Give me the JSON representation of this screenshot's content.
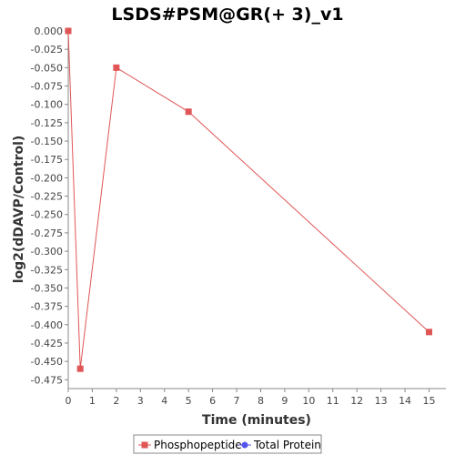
{
  "chart_data": {
    "type": "line",
    "title": "LSDS#PSM@GR(+ 3)_v1",
    "xlabel": "Time (minutes)",
    "ylabel": "log2(dDAVP/Control)",
    "xlim": [
      0,
      15.7
    ],
    "ylim": [
      -0.487,
      0.0
    ],
    "xticks": [
      0,
      1,
      2,
      3,
      4,
      5,
      6,
      7,
      8,
      9,
      10,
      11,
      12,
      13,
      14,
      15
    ],
    "yticks": [
      0.0,
      -0.025,
      -0.05,
      -0.075,
      -0.1,
      -0.125,
      -0.15,
      -0.175,
      -0.2,
      -0.225,
      -0.25,
      -0.275,
      -0.3,
      -0.325,
      -0.35,
      -0.375,
      -0.4,
      -0.425,
      -0.45,
      -0.475
    ],
    "ytick_labels": [
      "0.000",
      "-0.025",
      "-0.050",
      "-0.075",
      "-0.100",
      "-0.125",
      "-0.150",
      "-0.175",
      "-0.200",
      "-0.225",
      "-0.250",
      "-0.275",
      "-0.300",
      "-0.325",
      "-0.350",
      "-0.375",
      "-0.400",
      "-0.425",
      "-0.450",
      "-0.475"
    ],
    "grid": false,
    "legend_position": "bottom-center",
    "series": [
      {
        "name": "Phosphopeptide",
        "color": "#e05555",
        "marker": "square",
        "x": [
          0,
          0.5,
          2,
          5,
          15
        ],
        "y": [
          0.0,
          -0.46,
          -0.05,
          -0.11,
          -0.41
        ]
      },
      {
        "name": "Total Protein",
        "color": "#5555ee",
        "marker": "circle",
        "x": [],
        "y": []
      }
    ]
  }
}
